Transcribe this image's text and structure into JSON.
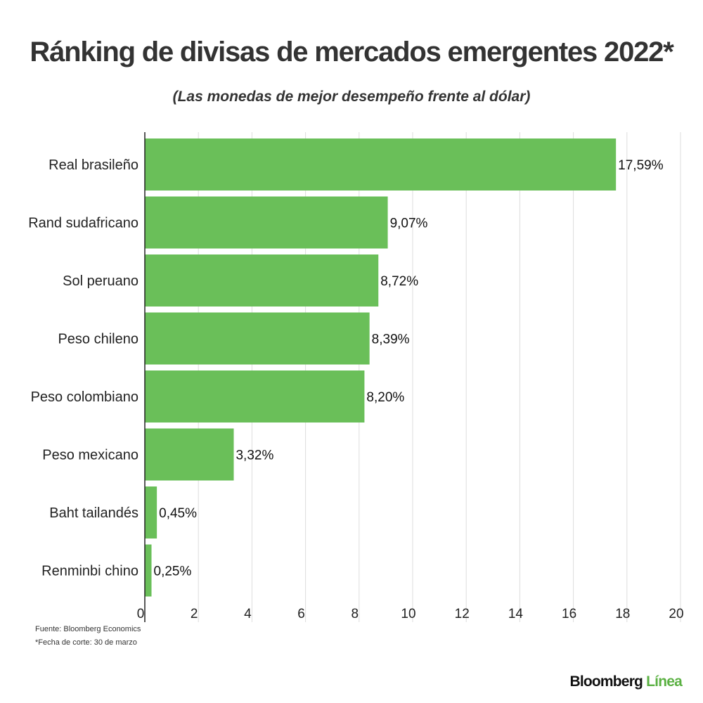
{
  "title": "Ránking de divisas de mercados emergentes 2022*",
  "subtitle": "(Las monedas de mejor desempeño frente al dólar)",
  "footnotes": {
    "source": "Fuente: Bloomberg Economics",
    "cutoff": "*Fecha de corte: 30 de marzo"
  },
  "brand": {
    "name": "Bloomberg",
    "suffix": "Línea"
  },
  "colors": {
    "bar": "#6abf59",
    "grid": "#dddddd",
    "axis": "#222222"
  },
  "chart_data": {
    "type": "bar",
    "orientation": "horizontal",
    "categories": [
      "Real brasileño",
      "Rand sudafricano",
      "Sol peruano",
      "Peso chileno",
      "Peso colombiano",
      "Peso mexicano",
      "Baht tailandés",
      "Renminbi chino"
    ],
    "values": [
      17.59,
      9.07,
      8.72,
      8.39,
      8.2,
      3.32,
      0.45,
      0.25
    ],
    "value_labels": [
      "17,59%",
      "9,07%",
      "8,72%",
      "8,39%",
      "8,20%",
      "3,32%",
      "0,45%",
      "0,25%"
    ],
    "xlim": [
      0,
      20
    ],
    "xticks": [
      0,
      2,
      4,
      6,
      8,
      10,
      12,
      14,
      16,
      18,
      20
    ],
    "grid": true,
    "xlabel": "",
    "ylabel": ""
  }
}
